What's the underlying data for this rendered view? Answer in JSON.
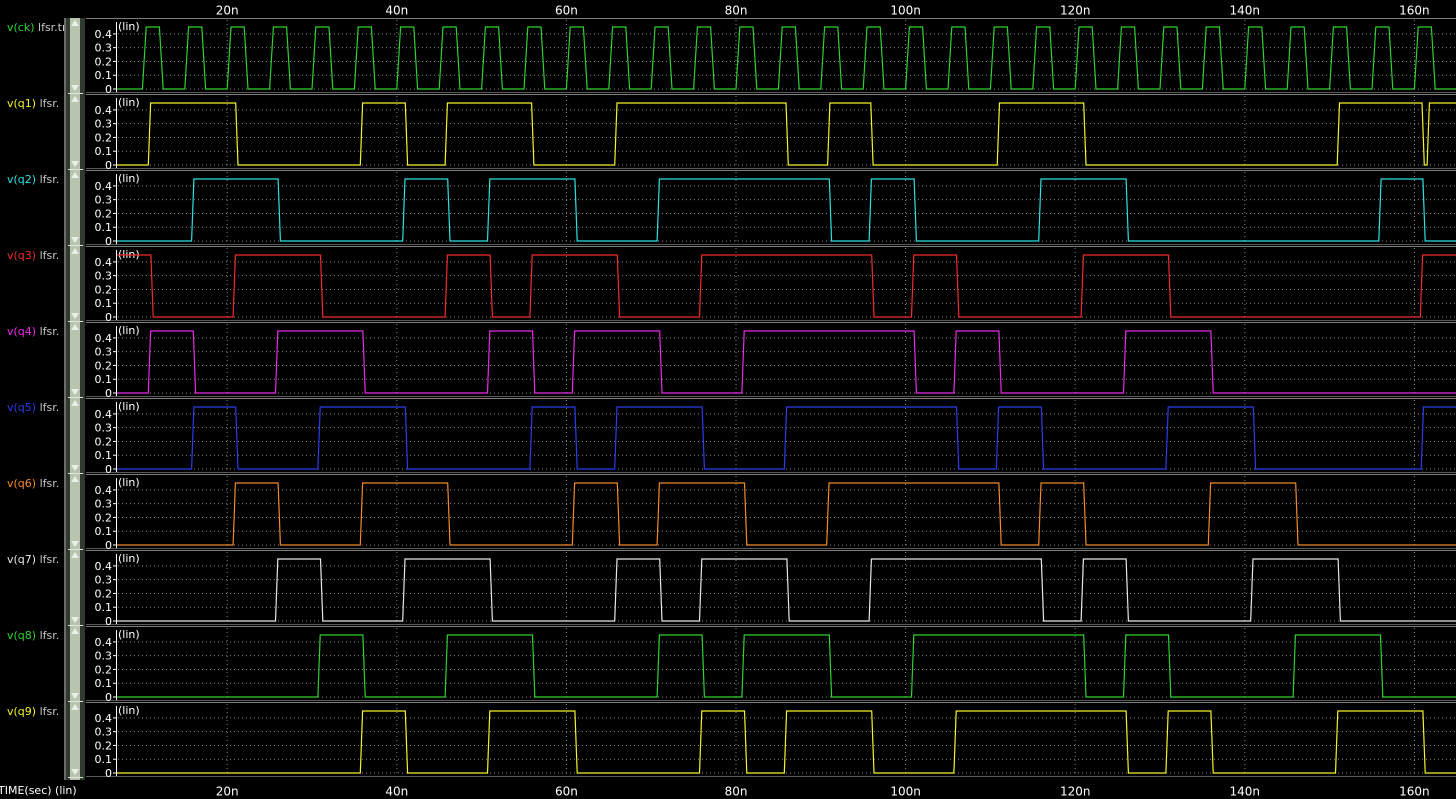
{
  "xaxis_label": "TIME(sec) (lin)",
  "lin_label": "(lin)",
  "file_label": "lfsr.",
  "chart_data": {
    "type": "line",
    "xlabel": "TIME(sec) (lin)",
    "xunit": "ns",
    "xlim": [
      8,
      165
    ],
    "xticks": [
      20,
      40,
      60,
      80,
      100,
      120,
      140,
      160
    ],
    "xtick_labels": [
      "20n",
      "40n",
      "60n",
      "80n",
      "100n",
      "120n",
      "140n",
      "160n"
    ],
    "ylim": [
      0,
      0.45
    ],
    "yticks": [
      0,
      0.1,
      0.2,
      0.3,
      0.4
    ],
    "ytick_labels": [
      "0",
      "0.1",
      "0.2",
      "0.3",
      "0.4"
    ],
    "high_level": 0.45,
    "series": [
      {
        "name": "v(ck)",
        "file": "lfsr.tr",
        "color": "#2fd12f",
        "clock": {
          "start": 10,
          "period": 5,
          "width": 2
        }
      },
      {
        "name": "v(q1)",
        "file": "lfsr.",
        "color": "#f4f42a",
        "initial": 0,
        "transitions": [
          10.7,
          21,
          35.7,
          41,
          45.7,
          55.9,
          65.7,
          85.9,
          90.8,
          95.9,
          110.8,
          121,
          150.9,
          160.9,
          161.5
        ]
      },
      {
        "name": "v(q2)",
        "file": "lfsr.",
        "color": "#2ee0e0",
        "initial": 0,
        "transitions": [
          15.8,
          26,
          40.7,
          46,
          50.7,
          61,
          70.7,
          91,
          95.7,
          101,
          115.7,
          126,
          155.8,
          161
        ]
      },
      {
        "name": "v(q3)",
        "file": "lfsr.",
        "color": "#ef2c2c",
        "initial": 1,
        "transitions": [
          11,
          20.7,
          31,
          45.7,
          51,
          55.7,
          66,
          75.7,
          96,
          100.7,
          106,
          120.7,
          131,
          160.7,
          166
        ]
      },
      {
        "name": "v(q4)",
        "file": "lfsr.",
        "color": "#e82ae8",
        "initial": 0,
        "transitions": [
          10.7,
          16,
          25.7,
          36,
          50.7,
          56,
          60.7,
          71,
          80.7,
          101,
          105.7,
          111,
          125.7,
          136
        ]
      },
      {
        "name": "v(q5)",
        "file": "lfsr.",
        "color": "#2a3de8",
        "initial": 0,
        "transitions": [
          15.8,
          21,
          30.7,
          41,
          55.7,
          61,
          65.7,
          76,
          85.7,
          106,
          110.7,
          116,
          130.7,
          141,
          160.8
        ]
      },
      {
        "name": "v(q6)",
        "file": "lfsr.",
        "color": "#f08a2a",
        "initial": 0,
        "transitions": [
          20.7,
          26,
          35.7,
          46,
          60.7,
          66,
          70.7,
          81,
          90.7,
          111,
          115.7,
          121,
          135.7,
          146
        ]
      },
      {
        "name": "v(q7)",
        "file": "lfsr.",
        "color": "#e8e8e8",
        "initial": 0,
        "transitions": [
          25.7,
          31,
          40.7,
          51,
          65.7,
          71,
          75.7,
          86,
          95.7,
          116,
          120.7,
          126,
          140.7,
          151
        ]
      },
      {
        "name": "v(q8)",
        "file": "lfsr.",
        "color": "#2fd12f",
        "initial": 0,
        "transitions": [
          30.7,
          36,
          45.7,
          56,
          70.7,
          76,
          80.7,
          91,
          100.7,
          121,
          125.7,
          131,
          145.7,
          156
        ]
      },
      {
        "name": "v(q9)",
        "file": "lfsr.",
        "color": "#f4f42a",
        "initial": 0,
        "transitions": [
          35.7,
          41,
          50.7,
          61,
          75.7,
          81,
          85.7,
          96,
          105.7,
          126,
          130.7,
          136,
          150.7,
          161
        ]
      }
    ]
  }
}
